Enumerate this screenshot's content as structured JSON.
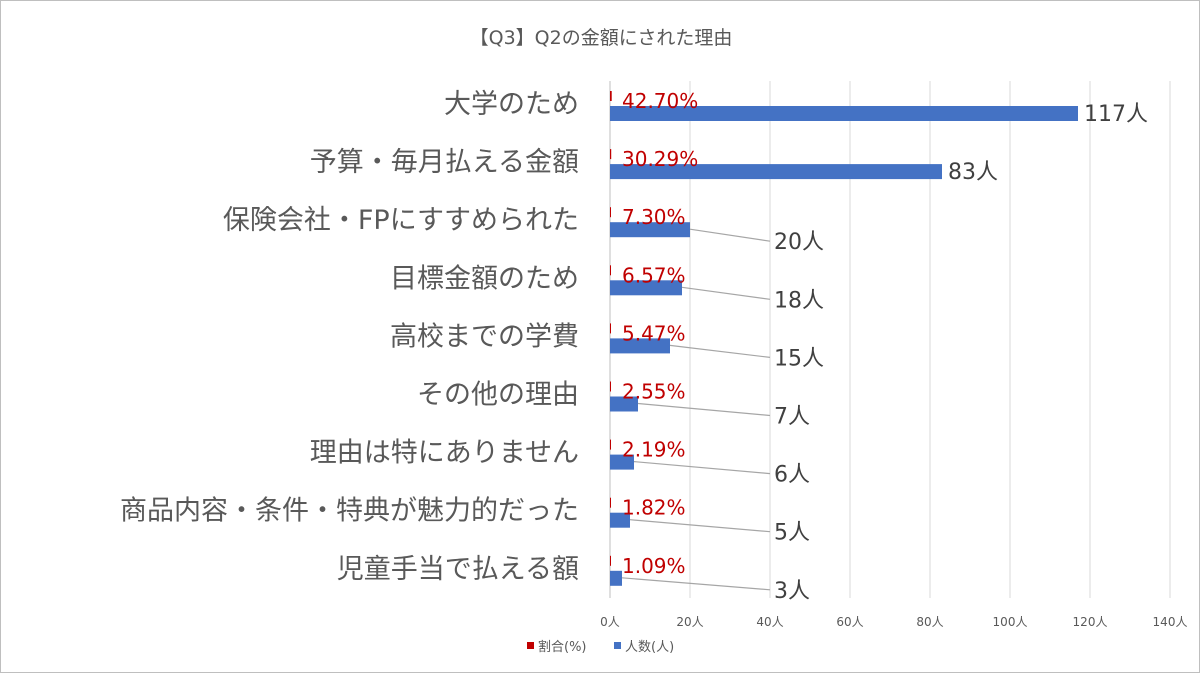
{
  "chart_data": {
    "type": "bar",
    "orientation": "horizontal",
    "title": "【Q3】Q2の金額にされた理由",
    "categories": [
      "大学のため",
      "予算・毎月払える金額",
      "保険会社・FPにすすめられた",
      "目標金額のため",
      "高校までの学費",
      "その他の理由",
      "理由は特にありません",
      "商品内容・条件・特典が魅力的だった",
      "児童手当で払える額"
    ],
    "series": [
      {
        "name": "割合(%)",
        "color": "#c00000",
        "values": [
          42.7,
          30.29,
          7.3,
          6.57,
          5.47,
          2.55,
          2.19,
          1.82,
          1.09
        ],
        "labels": [
          "42.70%",
          "30.29%",
          "7.30%",
          "6.57%",
          "5.47%",
          "2.55%",
          "2.19%",
          "1.82%",
          "1.09%"
        ]
      },
      {
        "name": "人数(人)",
        "color": "#4472c4",
        "values": [
          117,
          83,
          20,
          18,
          15,
          7,
          6,
          5,
          3
        ],
        "labels": [
          "117人",
          "83人",
          "20人",
          "18人",
          "15人",
          "7人",
          "6人",
          "5人",
          "3人"
        ]
      }
    ],
    "xlim": [
      0,
      140
    ],
    "xticks": [
      0,
      20,
      40,
      60,
      80,
      100,
      120,
      140
    ],
    "xtick_labels": [
      "0人",
      "20人",
      "40人",
      "60人",
      "80人",
      "100人",
      "120人",
      "140人"
    ],
    "grid": "vertical",
    "legend_position": "bottom-left",
    "xlabel": "",
    "ylabel": ""
  }
}
